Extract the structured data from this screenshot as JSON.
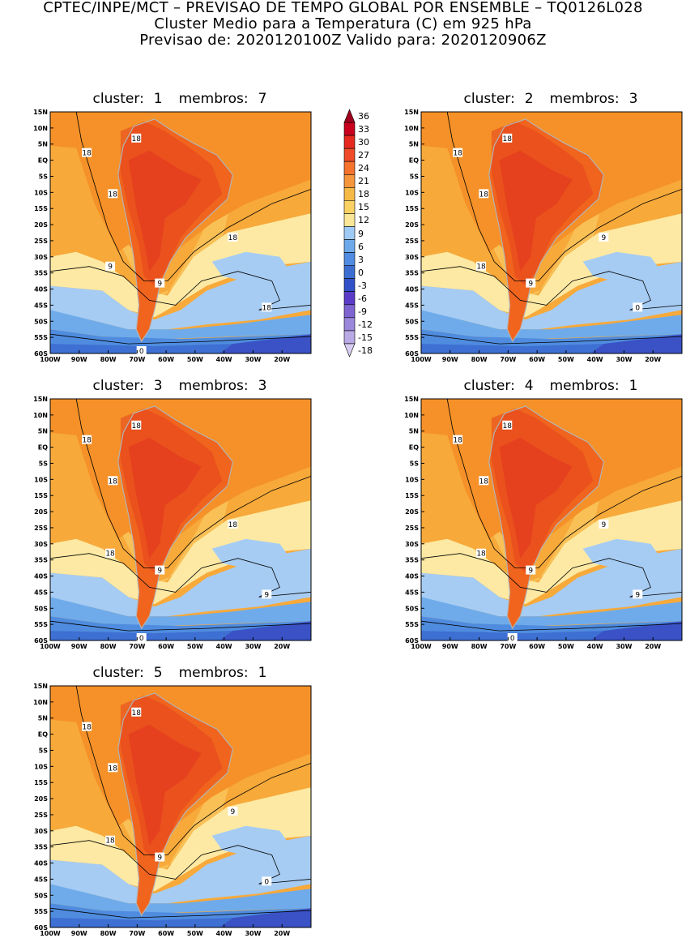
{
  "header": {
    "line1": "CPTEC/INPE/MCT – PREVISAO DE TEMPO GLOBAL POR ENSEMBLE – TQ0126L028",
    "line2": "Cluster Medio para a Temperatura (C) em 925 hPa",
    "line3": "Previsao de: 2020120100Z    Valido para: 2020120906Z"
  },
  "panels": [
    {
      "cluster_label": "cluster:",
      "cluster": "1",
      "members_label": "membros:",
      "members": "7",
      "contour_labels": [
        "18",
        "18",
        "18",
        "18",
        "9",
        "9",
        "18",
        "0"
      ]
    },
    {
      "cluster_label": "cluster:",
      "cluster": "2",
      "members_label": "membros:",
      "members": "3",
      "contour_labels": [
        "18",
        "18",
        "18",
        "9",
        "18",
        "9",
        "0"
      ]
    },
    {
      "cluster_label": "cluster:",
      "cluster": "3",
      "members_label": "membros:",
      "members": "3",
      "contour_labels": [
        "18",
        "18",
        "18",
        "18",
        "18",
        "9",
        "9",
        "0"
      ]
    },
    {
      "cluster_label": "cluster:",
      "cluster": "4",
      "members_label": "membros:",
      "members": "1",
      "contour_labels": [
        "18",
        "18",
        "18",
        "9",
        "18",
        "9",
        "9",
        "0"
      ]
    },
    {
      "cluster_label": "cluster:",
      "cluster": "5",
      "members_label": "membros:",
      "members": "1",
      "contour_labels": [
        "18",
        "18",
        "18",
        "9",
        "18",
        "9",
        "0"
      ]
    }
  ],
  "lat_ticks": [
    "15N",
    "10N",
    "5N",
    "EQ",
    "5S",
    "10S",
    "15S",
    "20S",
    "25S",
    "30S",
    "35S",
    "40S",
    "45S",
    "50S",
    "55S",
    "60S"
  ],
  "lon_ticks": [
    "100W",
    "90W",
    "80W",
    "70W",
    "60W",
    "50W",
    "40W",
    "30W",
    "20W"
  ],
  "colorbar": {
    "labels": [
      "36",
      "33",
      "30",
      "27",
      "24",
      "21",
      "18",
      "15",
      "12",
      "9",
      "6",
      "3",
      "0",
      "-3",
      "-6",
      "-9",
      "-12",
      "-15",
      "-18"
    ],
    "colors": [
      "#a0001e",
      "#c8001e",
      "#e6281e",
      "#f04b28",
      "#f5732d",
      "#f5963c",
      "#f5b946",
      "#fad264",
      "#fae696",
      "#9fcaf5",
      "#6eaaeb",
      "#508ce1",
      "#3c6ed2",
      "#3250c8",
      "#5a3cc8",
      "#7d64d2",
      "#9b87dc",
      "#b9aae6",
      "#d7cdf0"
    ]
  },
  "field_colors": {
    "t27": "#e6411e",
    "t24": "#f0641e",
    "t21": "#f59128",
    "t18": "#f7a93a",
    "t15": "#fbd46e",
    "t12": "#fde9a3",
    "t9": "#a6ccf3",
    "t6": "#6fabea",
    "t3": "#4f8cdf",
    "t0": "#3e6fd3",
    "tm3": "#3a52c5",
    "tm6": "#5a42c4",
    "coast": "#b4b4b4",
    "contour": "#000000"
  }
}
